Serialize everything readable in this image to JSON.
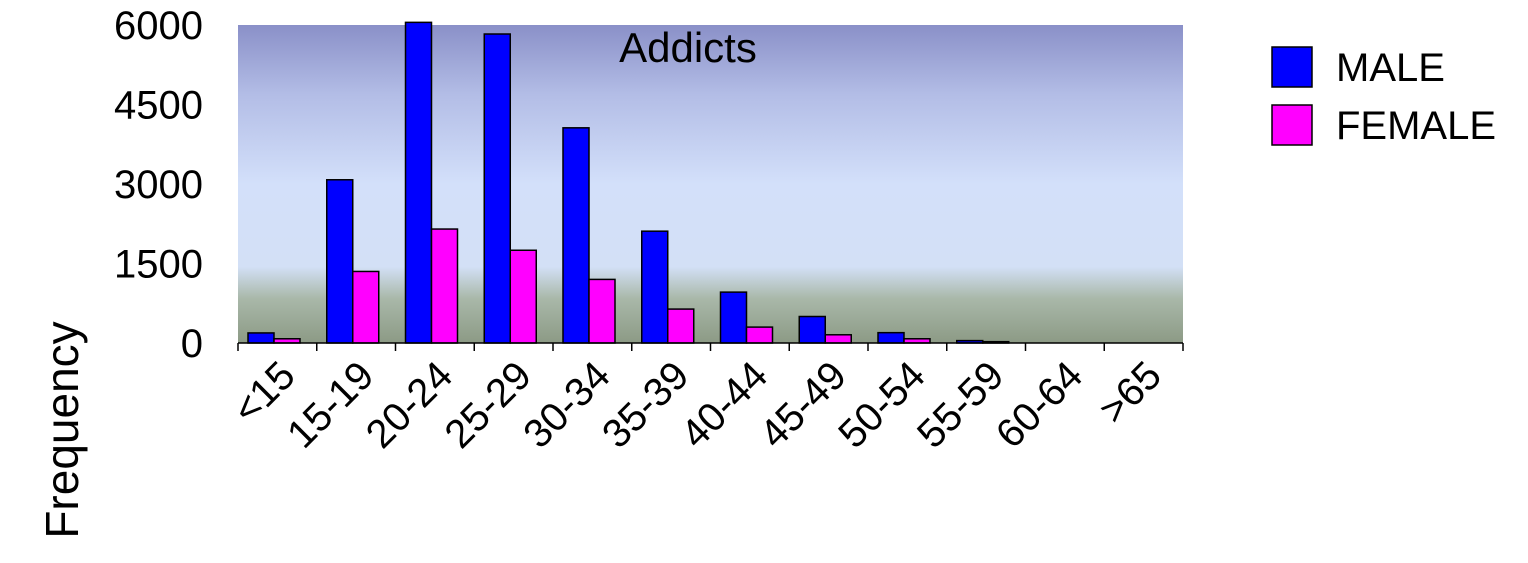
{
  "chart_data": {
    "type": "bar",
    "title": "Addicts",
    "ylabel": "Frequency",
    "xlabel": "",
    "categories": [
      "<15",
      "15-19",
      "20-24",
      "25-29",
      "30-34",
      "35-39",
      "40-44",
      "45-49",
      "50-54",
      "55-59",
      "60-64",
      ">65"
    ],
    "series": [
      {
        "name": "MALE",
        "color": "#0000ff",
        "values": [
          190,
          3080,
          6050,
          5830,
          4060,
          2110,
          960,
          500,
          195,
          45,
          0,
          0
        ]
      },
      {
        "name": "FEMALE",
        "color": "#ff00ff",
        "values": [
          80,
          1350,
          2150,
          1750,
          1200,
          640,
          300,
          155,
          80,
          25,
          0,
          0
        ]
      }
    ],
    "yticks": [
      "0",
      "1500",
      "3000",
      "4500",
      "6000"
    ],
    "ylim": [
      0,
      6000
    ],
    "grid": false,
    "legend_position": "right",
    "background": "gradient"
  }
}
